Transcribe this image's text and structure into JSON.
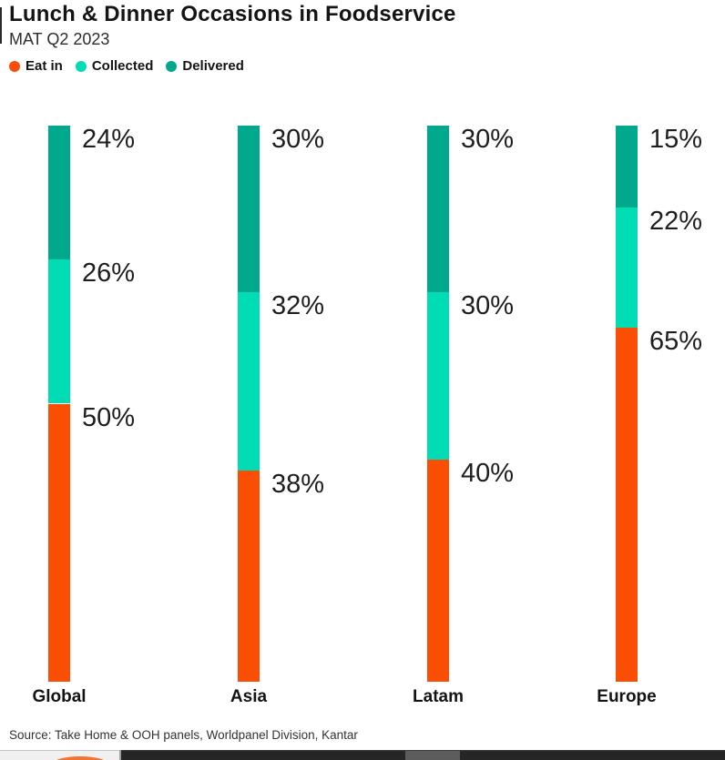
{
  "page": {
    "title": "Lunch & Dinner Occasions in Foodservice",
    "subtitle": "MAT Q2 2023",
    "source": "Source: Take Home & OOH panels, Worldpanel Division, Kantar"
  },
  "legend": [
    {
      "label": "Eat in",
      "color": "#FB4E05"
    },
    {
      "label": "Collected",
      "color": "#00DDB5"
    },
    {
      "label": "Delivered",
      "color": "#00A98B"
    }
  ],
  "colors": {
    "eat_in": "#FB4E05",
    "collected": "#00DDB5",
    "delivered": "#00A98B",
    "text": "#141414"
  },
  "chart_data": {
    "type": "bar",
    "subtype": "stacked-vertical-100pct",
    "title": "Lunch & Dinner Occasions in Foodservice",
    "subtitle": "MAT Q2 2023",
    "categories": [
      "Global",
      "Asia",
      "Latam",
      "Europe"
    ],
    "series": [
      {
        "name": "Eat in",
        "color": "#FB4E05",
        "values": [
          50,
          38,
          40,
          65
        ]
      },
      {
        "name": "Collected",
        "color": "#00DDB5",
        "values": [
          26,
          32,
          30,
          22
        ]
      },
      {
        "name": "Delivered",
        "color": "#00A98B",
        "values": [
          24,
          30,
          30,
          15
        ]
      }
    ],
    "stack_order_top_to_bottom": [
      "Delivered",
      "Collected",
      "Eat in"
    ],
    "value_label_format": "{value}%",
    "value_labels_visible": true,
    "legend_position": "top-left",
    "grid": false,
    "axes_visible": false,
    "xlabel": "",
    "ylabel": "",
    "ylim": [
      0,
      100
    ]
  }
}
